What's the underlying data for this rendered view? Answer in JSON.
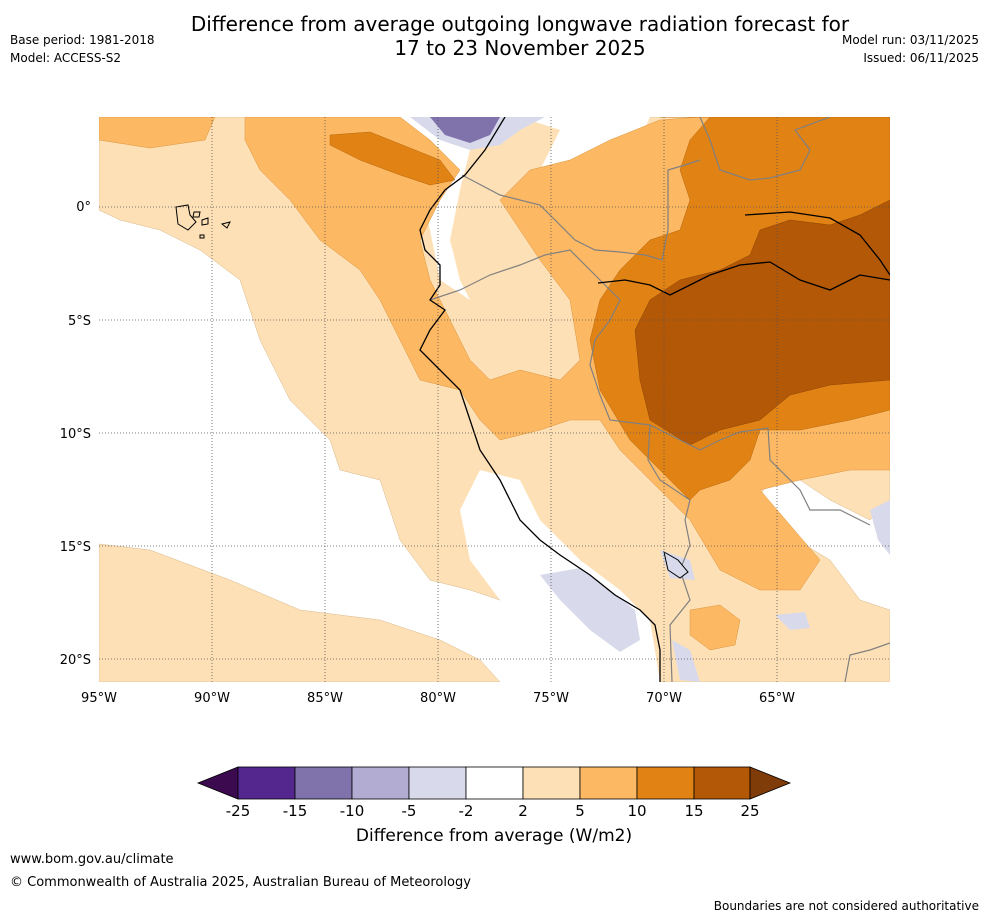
{
  "header": {
    "title_line1": "Difference from average outgoing longwave radiation forecast for",
    "title_line2": "17 to 23 November 2025",
    "base_period": "Base period: 1981-2018",
    "model": "Model: ACCESS-S2",
    "model_run": "Model run: 03/11/2025",
    "issued": "Issued: 06/11/2025"
  },
  "map": {
    "lat_labels": [
      "0°",
      "5°S",
      "10°S",
      "15°S",
      "20°S"
    ],
    "lon_labels": [
      "95°W",
      "90°W",
      "85°W",
      "80°W",
      "75°W",
      "70°W",
      "65°W"
    ]
  },
  "legend": {
    "ticks": [
      "-25",
      "-15",
      "-10",
      "-5",
      "-2",
      "2",
      "5",
      "10",
      "15",
      "25"
    ],
    "colors": [
      "#3b0a4f",
      "#54278f",
      "#8073ac",
      "#b2abd2",
      "#d8daeb",
      "#ffffff",
      "#fee0b6",
      "#fdb863",
      "#e08214",
      "#b35806",
      "#7f3b08"
    ],
    "label": "Difference from average (W/m2)"
  },
  "footer": {
    "website": "www.bom.gov.au/climate",
    "copyright": "© Commonwealth of Australia 2025, Australian Bureau of Meteorology",
    "disclaimer": "Boundaries are not considered authoritative"
  }
}
